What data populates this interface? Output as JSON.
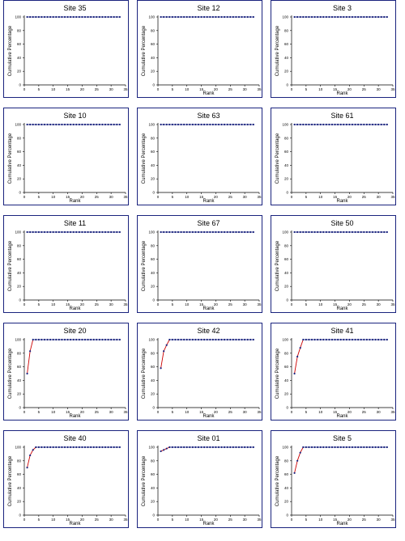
{
  "y_axis_label": "Cumulative Percentage",
  "x_axis_label": "Rank",
  "colors": {
    "frame": "#1a237e",
    "points": "#1a237e",
    "early_line": "#cc0000",
    "axis": "#000000"
  },
  "chart_data": [
    {
      "type": "line",
      "title": "Site 35",
      "x": [
        1,
        2,
        3,
        4,
        5,
        6,
        7,
        8,
        9,
        10,
        11,
        12,
        13,
        14,
        15,
        16,
        17,
        18,
        19,
        20,
        21,
        22,
        23,
        24,
        25,
        26,
        27,
        28,
        29,
        30,
        31,
        32,
        33
      ],
      "y": [
        100,
        100,
        100,
        100,
        100,
        100,
        100,
        100,
        100,
        100,
        100,
        100,
        100,
        100,
        100,
        100,
        100,
        100,
        100,
        100,
        100,
        100,
        100,
        100,
        100,
        100,
        100,
        100,
        100,
        100,
        100,
        100,
        100
      ],
      "xlim": [
        0,
        35
      ],
      "xticks": [
        0,
        5,
        10,
        15,
        20,
        25,
        30,
        35
      ],
      "ylim": [
        0,
        100
      ],
      "yticks": [
        0,
        20,
        40,
        60,
        80,
        100
      ],
      "xlabel": "",
      "ylabel": "Cumulative Percentage"
    },
    {
      "type": "line",
      "title": "Site 12",
      "x": [
        1,
        2,
        3,
        4,
        5,
        6,
        7,
        8,
        9,
        10,
        11,
        12,
        13,
        14,
        15,
        16,
        17,
        18,
        19,
        20,
        21,
        22,
        23,
        24,
        25,
        26,
        27,
        28,
        29,
        30,
        31,
        32,
        33
      ],
      "y": [
        100,
        100,
        100,
        100,
        100,
        100,
        100,
        100,
        100,
        100,
        100,
        100,
        100,
        100,
        100,
        100,
        100,
        100,
        100,
        100,
        100,
        100,
        100,
        100,
        100,
        100,
        100,
        100,
        100,
        100,
        100,
        100,
        100
      ],
      "xlim": [
        0,
        35
      ],
      "xticks": [
        0,
        5,
        10,
        15,
        20,
        25,
        30,
        35
      ],
      "ylim": [
        0,
        100
      ],
      "yticks": [
        0,
        20,
        40,
        60,
        80,
        100
      ],
      "xlabel": "Rank",
      "ylabel": "Cumulative Percentage"
    },
    {
      "type": "line",
      "title": "Site 3",
      "x": [
        1,
        2,
        3,
        4,
        5,
        6,
        7,
        8,
        9,
        10,
        11,
        12,
        13,
        14,
        15,
        16,
        17,
        18,
        19,
        20,
        21,
        22,
        23,
        24,
        25,
        26,
        27,
        28,
        29,
        30,
        31,
        32,
        33
      ],
      "y": [
        100,
        100,
        100,
        100,
        100,
        100,
        100,
        100,
        100,
        100,
        100,
        100,
        100,
        100,
        100,
        100,
        100,
        100,
        100,
        100,
        100,
        100,
        100,
        100,
        100,
        100,
        100,
        100,
        100,
        100,
        100,
        100,
        100
      ],
      "xlim": [
        0,
        35
      ],
      "xticks": [
        0,
        5,
        10,
        15,
        20,
        25,
        30,
        35
      ],
      "ylim": [
        0,
        100
      ],
      "yticks": [
        0,
        20,
        40,
        60,
        80,
        100
      ],
      "xlabel": "Rank",
      "ylabel": "Cumulative Percentage"
    },
    {
      "type": "line",
      "title": "Site 10",
      "x": [
        1,
        2,
        3,
        4,
        5,
        6,
        7,
        8,
        9,
        10,
        11,
        12,
        13,
        14,
        15,
        16,
        17,
        18,
        19,
        20,
        21,
        22,
        23,
        24,
        25,
        26,
        27,
        28,
        29,
        30,
        31,
        32,
        33
      ],
      "y": [
        100,
        100,
        100,
        100,
        100,
        100,
        100,
        100,
        100,
        100,
        100,
        100,
        100,
        100,
        100,
        100,
        100,
        100,
        100,
        100,
        100,
        100,
        100,
        100,
        100,
        100,
        100,
        100,
        100,
        100,
        100,
        100,
        100
      ],
      "xlim": [
        0,
        35
      ],
      "xticks": [
        0,
        5,
        10,
        15,
        20,
        25,
        30,
        35
      ],
      "ylim": [
        0,
        100
      ],
      "yticks": [
        0,
        20,
        40,
        60,
        80,
        100
      ],
      "xlabel": "Rank",
      "ylabel": "Cumulative Percentage"
    },
    {
      "type": "line",
      "title": "Site 63",
      "x": [
        1,
        2,
        3,
        4,
        5,
        6,
        7,
        8,
        9,
        10,
        11,
        12,
        13,
        14,
        15,
        16,
        17,
        18,
        19,
        20,
        21,
        22,
        23,
        24,
        25,
        26,
        27,
        28,
        29,
        30,
        31,
        32,
        33
      ],
      "y": [
        100,
        100,
        100,
        100,
        100,
        100,
        100,
        100,
        100,
        100,
        100,
        100,
        100,
        100,
        100,
        100,
        100,
        100,
        100,
        100,
        100,
        100,
        100,
        100,
        100,
        100,
        100,
        100,
        100,
        100,
        100,
        100,
        100
      ],
      "xlim": [
        0,
        35
      ],
      "xticks": [
        0,
        5,
        10,
        15,
        20,
        25,
        30,
        35
      ],
      "ylim": [
        0,
        100
      ],
      "yticks": [
        0,
        20,
        40,
        60,
        80,
        100
      ],
      "xlabel": "Rank",
      "ylabel": "Cumulative Percentage"
    },
    {
      "type": "line",
      "title": "Site 61",
      "x": [
        1,
        2,
        3,
        4,
        5,
        6,
        7,
        8,
        9,
        10,
        11,
        12,
        13,
        14,
        15,
        16,
        17,
        18,
        19,
        20,
        21,
        22,
        23,
        24,
        25,
        26,
        27,
        28,
        29,
        30,
        31,
        32,
        33
      ],
      "y": [
        100,
        100,
        100,
        100,
        100,
        100,
        100,
        100,
        100,
        100,
        100,
        100,
        100,
        100,
        100,
        100,
        100,
        100,
        100,
        100,
        100,
        100,
        100,
        100,
        100,
        100,
        100,
        100,
        100,
        100,
        100,
        100,
        100
      ],
      "xlim": [
        0,
        35
      ],
      "xticks": [
        0,
        5,
        10,
        15,
        20,
        25,
        30,
        35
      ],
      "ylim": [
        0,
        100
      ],
      "yticks": [
        0,
        20,
        40,
        60,
        80,
        100
      ],
      "xlabel": "Rank",
      "ylabel": "Cumulative Percentage"
    },
    {
      "type": "line",
      "title": "Site 11",
      "x": [
        1,
        2,
        3,
        4,
        5,
        6,
        7,
        8,
        9,
        10,
        11,
        12,
        13,
        14,
        15,
        16,
        17,
        18,
        19,
        20,
        21,
        22,
        23,
        24,
        25,
        26,
        27,
        28,
        29,
        30,
        31,
        32,
        33
      ],
      "y": [
        100,
        100,
        100,
        100,
        100,
        100,
        100,
        100,
        100,
        100,
        100,
        100,
        100,
        100,
        100,
        100,
        100,
        100,
        100,
        100,
        100,
        100,
        100,
        100,
        100,
        100,
        100,
        100,
        100,
        100,
        100,
        100,
        100
      ],
      "xlim": [
        0,
        35
      ],
      "xticks": [
        0,
        5,
        10,
        15,
        20,
        25,
        30,
        35
      ],
      "ylim": [
        0,
        100
      ],
      "yticks": [
        0,
        20,
        40,
        60,
        80,
        100
      ],
      "xlabel": "Rank",
      "ylabel": "Cumulative Percentage"
    },
    {
      "type": "line",
      "title": "Site 67",
      "x": [
        1,
        2,
        3,
        4,
        5,
        6,
        7,
        8,
        9,
        10,
        11,
        12,
        13,
        14,
        15,
        16,
        17,
        18,
        19,
        20,
        21,
        22,
        23,
        24,
        25,
        26,
        27,
        28,
        29,
        30,
        31,
        32,
        33
      ],
      "y": [
        100,
        100,
        100,
        100,
        100,
        100,
        100,
        100,
        100,
        100,
        100,
        100,
        100,
        100,
        100,
        100,
        100,
        100,
        100,
        100,
        100,
        100,
        100,
        100,
        100,
        100,
        100,
        100,
        100,
        100,
        100,
        100,
        100
      ],
      "xlim": [
        0,
        35
      ],
      "xticks": [
        0,
        5,
        10,
        15,
        20,
        25,
        30,
        35
      ],
      "ylim": [
        0,
        100
      ],
      "yticks": [
        0,
        20,
        40,
        60,
        80,
        100
      ],
      "xlabel": "Rank",
      "ylabel": "Cumulative Percentage"
    },
    {
      "type": "line",
      "title": "Site 50",
      "x": [
        1,
        2,
        3,
        4,
        5,
        6,
        7,
        8,
        9,
        10,
        11,
        12,
        13,
        14,
        15,
        16,
        17,
        18,
        19,
        20,
        21,
        22,
        23,
        24,
        25,
        26,
        27,
        28,
        29,
        30,
        31,
        32,
        33
      ],
      "y": [
        100,
        100,
        100,
        100,
        100,
        100,
        100,
        100,
        100,
        100,
        100,
        100,
        100,
        100,
        100,
        100,
        100,
        100,
        100,
        100,
        100,
        100,
        100,
        100,
        100,
        100,
        100,
        100,
        100,
        100,
        100,
        100,
        100
      ],
      "xlim": [
        0,
        35
      ],
      "xticks": [
        0,
        5,
        10,
        15,
        20,
        25,
        30,
        35
      ],
      "ylim": [
        0,
        100
      ],
      "yticks": [
        0,
        20,
        40,
        60,
        80,
        100
      ],
      "xlabel": "Rank",
      "ylabel": "Cumulative Percentage"
    },
    {
      "type": "line",
      "title": "Site 20",
      "x": [
        1,
        2,
        3,
        4,
        5,
        6,
        7,
        8,
        9,
        10,
        11,
        12,
        13,
        14,
        15,
        16,
        17,
        18,
        19,
        20,
        21,
        22,
        23,
        24,
        25,
        26,
        27,
        28,
        29,
        30,
        31,
        32,
        33
      ],
      "y": [
        50,
        83,
        100,
        100,
        100,
        100,
        100,
        100,
        100,
        100,
        100,
        100,
        100,
        100,
        100,
        100,
        100,
        100,
        100,
        100,
        100,
        100,
        100,
        100,
        100,
        100,
        100,
        100,
        100,
        100,
        100,
        100,
        100
      ],
      "xlim": [
        0,
        35
      ],
      "xticks": [
        0,
        5,
        10,
        15,
        20,
        25,
        30,
        35
      ],
      "ylim": [
        0,
        100
      ],
      "yticks": [
        0,
        20,
        40,
        60,
        80,
        100
      ],
      "xlabel": "Rank",
      "ylabel": "Cumulative Percentage"
    },
    {
      "type": "line",
      "title": "Site 42",
      "x": [
        1,
        2,
        3,
        4,
        5,
        6,
        7,
        8,
        9,
        10,
        11,
        12,
        13,
        14,
        15,
        16,
        17,
        18,
        19,
        20,
        21,
        22,
        23,
        24,
        25,
        26,
        27,
        28,
        29,
        30,
        31,
        32,
        33
      ],
      "y": [
        58,
        83,
        92,
        100,
        100,
        100,
        100,
        100,
        100,
        100,
        100,
        100,
        100,
        100,
        100,
        100,
        100,
        100,
        100,
        100,
        100,
        100,
        100,
        100,
        100,
        100,
        100,
        100,
        100,
        100,
        100,
        100,
        100
      ],
      "xlim": [
        0,
        35
      ],
      "xticks": [
        0,
        5,
        10,
        15,
        20,
        25,
        30,
        35
      ],
      "ylim": [
        0,
        100
      ],
      "yticks": [
        0,
        20,
        40,
        60,
        80,
        100
      ],
      "xlabel": "Rank",
      "ylabel": "Cumulative Percentage"
    },
    {
      "type": "line",
      "title": "Site 41",
      "x": [
        1,
        2,
        3,
        4,
        5,
        6,
        7,
        8,
        9,
        10,
        11,
        12,
        13,
        14,
        15,
        16,
        17,
        18,
        19,
        20,
        21,
        22,
        23,
        24,
        25,
        26,
        27,
        28,
        29,
        30,
        31,
        32,
        33
      ],
      "y": [
        50,
        75,
        88,
        100,
        100,
        100,
        100,
        100,
        100,
        100,
        100,
        100,
        100,
        100,
        100,
        100,
        100,
        100,
        100,
        100,
        100,
        100,
        100,
        100,
        100,
        100,
        100,
        100,
        100,
        100,
        100,
        100,
        100
      ],
      "xlim": [
        0,
        35
      ],
      "xticks": [
        0,
        5,
        10,
        15,
        20,
        25,
        30,
        35
      ],
      "ylim": [
        0,
        100
      ],
      "yticks": [
        0,
        20,
        40,
        60,
        80,
        100
      ],
      "xlabel": "Rank",
      "ylabel": "Cumulative Percentage"
    },
    {
      "type": "line",
      "title": "Site 40",
      "x": [
        1,
        2,
        3,
        4,
        5,
        6,
        7,
        8,
        9,
        10,
        11,
        12,
        13,
        14,
        15,
        16,
        17,
        18,
        19,
        20,
        21,
        22,
        23,
        24,
        25,
        26,
        27,
        28,
        29,
        30,
        31,
        32,
        33
      ],
      "y": [
        70,
        88,
        96,
        100,
        100,
        100,
        100,
        100,
        100,
        100,
        100,
        100,
        100,
        100,
        100,
        100,
        100,
        100,
        100,
        100,
        100,
        100,
        100,
        100,
        100,
        100,
        100,
        100,
        100,
        100,
        100,
        100,
        100
      ],
      "xlim": [
        0,
        35
      ],
      "xticks": [
        0,
        5,
        10,
        15,
        20,
        25,
        30,
        35
      ],
      "ylim": [
        0,
        100
      ],
      "yticks": [
        0,
        20,
        40,
        60,
        80,
        100
      ],
      "xlabel": "Rank",
      "ylabel": "Cumulative Percentage"
    },
    {
      "type": "line",
      "title": "Site 01",
      "x": [
        1,
        2,
        3,
        4,
        5,
        6,
        7,
        8,
        9,
        10,
        11,
        12,
        13,
        14,
        15,
        16,
        17,
        18,
        19,
        20,
        21,
        22,
        23,
        24,
        25,
        26,
        27,
        28,
        29,
        30,
        31,
        32,
        33
      ],
      "y": [
        94,
        96,
        98,
        100,
        100,
        100,
        100,
        100,
        100,
        100,
        100,
        100,
        100,
        100,
        100,
        100,
        100,
        100,
        100,
        100,
        100,
        100,
        100,
        100,
        100,
        100,
        100,
        100,
        100,
        100,
        100,
        100,
        100
      ],
      "xlim": [
        0,
        35
      ],
      "xticks": [
        0,
        5,
        10,
        15,
        20,
        25,
        30,
        35
      ],
      "ylim": [
        0,
        100
      ],
      "yticks": [
        0,
        20,
        40,
        60,
        80,
        100
      ],
      "xlabel": "Rank",
      "ylabel": "Cumulative Percentage"
    },
    {
      "type": "line",
      "title": "Site 5",
      "x": [
        1,
        2,
        3,
        4,
        5,
        6,
        7,
        8,
        9,
        10,
        11,
        12,
        13,
        14,
        15,
        16,
        17,
        18,
        19,
        20,
        21,
        22,
        23,
        24,
        25,
        26,
        27,
        28,
        29,
        30,
        31,
        32,
        33
      ],
      "y": [
        62,
        80,
        92,
        100,
        100,
        100,
        100,
        100,
        100,
        100,
        100,
        100,
        100,
        100,
        100,
        100,
        100,
        100,
        100,
        100,
        100,
        100,
        100,
        100,
        100,
        100,
        100,
        100,
        100,
        100,
        100,
        100,
        100
      ],
      "xlim": [
        0,
        35
      ],
      "xticks": [
        0,
        5,
        10,
        15,
        20,
        25,
        30,
        35
      ],
      "ylim": [
        0,
        100
      ],
      "yticks": [
        0,
        20,
        40,
        60,
        80,
        100
      ],
      "xlabel": "Rank",
      "ylabel": "Cumulative Percentage"
    }
  ]
}
